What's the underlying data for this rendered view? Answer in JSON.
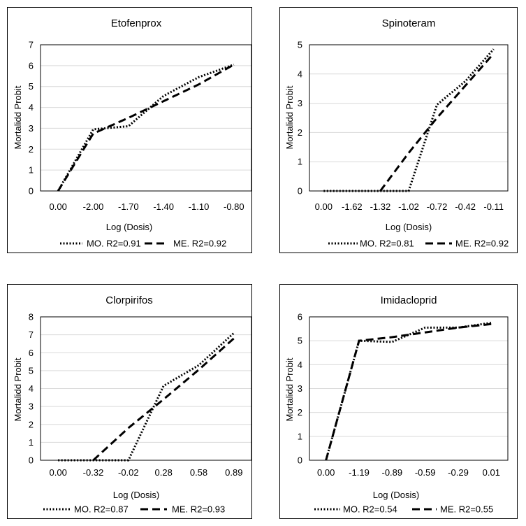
{
  "chart_data": [
    {
      "type": "line",
      "title": "Etofenprox",
      "xlabel": "Log (Dosis)",
      "ylabel": "Mortalidd Probit",
      "categories": [
        "0.00",
        "-2.00",
        "-1.70",
        "-1.40",
        "-1.10",
        "-0.80"
      ],
      "ylim": [
        0,
        7
      ],
      "yticks": [
        0,
        1,
        2,
        3,
        4,
        5,
        6,
        7
      ],
      "grid": true,
      "legend_position": "bottom",
      "series": [
        {
          "name": "MO. R2=0.91",
          "style": "dotted",
          "values": [
            0,
            2.95,
            3.1,
            4.55,
            5.45,
            6.05
          ]
        },
        {
          "name": "ME. R2=0.92",
          "style": "dashed",
          "values": [
            0,
            2.75,
            3.5,
            4.3,
            5.1,
            6.05
          ]
        }
      ]
    },
    {
      "type": "line",
      "title": "Spinoteram",
      "xlabel": "Log (Dosis)",
      "ylabel": "Mortalidd Probit",
      "categories": [
        "0.00",
        "-1.62",
        "-1.32",
        "-1.02",
        "-0.72",
        "-0.42",
        "-0.11"
      ],
      "ylim": [
        0,
        5
      ],
      "yticks": [
        0,
        1,
        2,
        3,
        4,
        5
      ],
      "grid": true,
      "legend_position": "bottom",
      "series": [
        {
          "name": "MO. R2=0.81",
          "style": "dotted",
          "values": [
            0,
            0,
            0,
            0,
            2.95,
            3.75,
            4.85
          ]
        },
        {
          "name": "ME. R2=0.92",
          "style": "dashed",
          "values": [
            null,
            null,
            0,
            1.3,
            2.5,
            3.6,
            4.7
          ]
        }
      ]
    },
    {
      "type": "line",
      "title": "Clorpirifos",
      "xlabel": "Log (Dosis)",
      "ylabel": "Mortalidd Probit",
      "categories": [
        "0.00",
        "-0.32",
        "-0.02",
        "0.28",
        "0.58",
        "0.89"
      ],
      "ylim": [
        0,
        8
      ],
      "yticks": [
        0,
        1,
        2,
        3,
        4,
        5,
        6,
        7,
        8
      ],
      "grid": true,
      "legend_position": "bottom",
      "series": [
        {
          "name": "MO. R2=0.87",
          "style": "dotted",
          "values": [
            0,
            0,
            0,
            4.15,
            5.3,
            7.1
          ]
        },
        {
          "name": "ME. R2=0.93",
          "style": "dashed",
          "values": [
            null,
            0,
            1.8,
            3.4,
            5.05,
            6.8
          ]
        }
      ]
    },
    {
      "type": "line",
      "title": "Imidacloprid",
      "xlabel": "Log (Dosis)",
      "ylabel": "Mortalidd Probit",
      "categories": [
        "0.00",
        "-1.19",
        "-0.89",
        "-0.59",
        "-0.29",
        "0.01"
      ],
      "ylim": [
        0,
        6
      ],
      "yticks": [
        0,
        1,
        2,
        3,
        4,
        5,
        6
      ],
      "grid": true,
      "legend_position": "bottom",
      "series": [
        {
          "name": "MO. R2=0.54",
          "style": "dotted",
          "values": [
            0,
            5.0,
            4.95,
            5.55,
            5.55,
            5.75
          ]
        },
        {
          "name": "ME. R2=0.55",
          "style": "dashed",
          "values": [
            0,
            5.0,
            5.15,
            5.35,
            5.55,
            5.7
          ]
        }
      ]
    }
  ]
}
